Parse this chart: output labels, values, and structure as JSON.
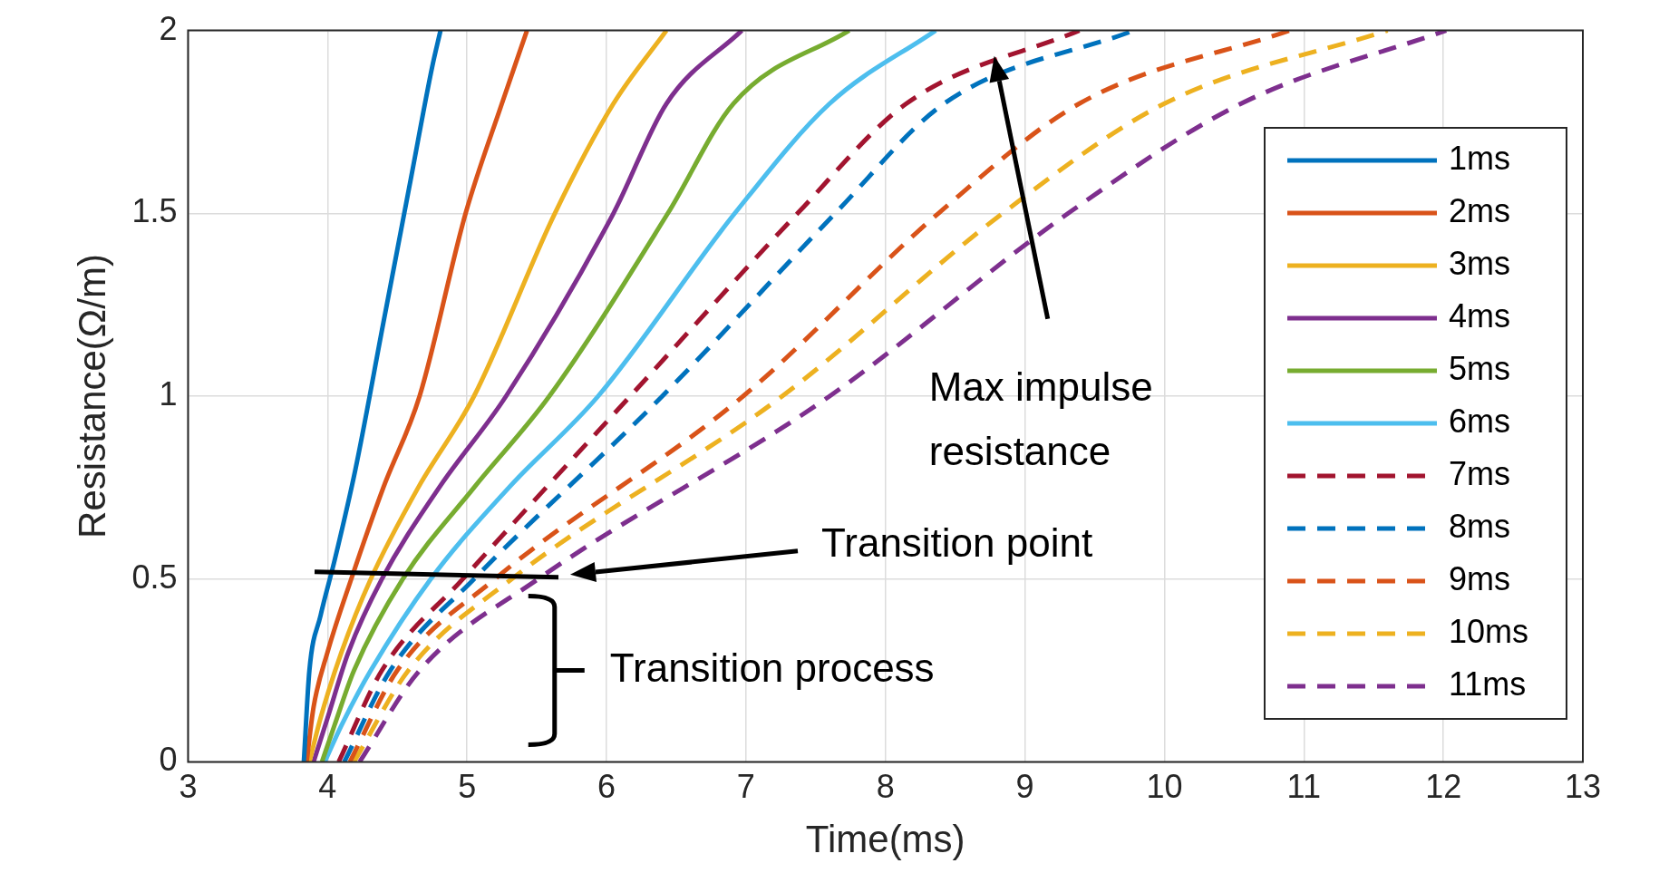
{
  "chart_data": {
    "type": "line",
    "xlabel": "Time(ms)",
    "ylabel": "Resistance(Ω/m)",
    "xlim": [
      3,
      13
    ],
    "xticks": [
      3,
      4,
      5,
      6,
      7,
      8,
      9,
      10,
      11,
      12,
      13
    ],
    "ylim": [
      0,
      2
    ],
    "yticks": [
      0,
      0.5,
      1,
      1.5,
      2
    ],
    "grid": true,
    "legend": "right",
    "marker": "none",
    "annotations": [
      "Max impulse resistance",
      "Transition point",
      "Transition process"
    ],
    "series": [
      {
        "name": "1ms",
        "color": "#0072bd",
        "line_style": "solid",
        "x": [
          3.83,
          3.87,
          3.95,
          4.05,
          4.2,
          4.4,
          4.6,
          4.75,
          4.81
        ],
        "values": [
          0,
          0.25,
          0.4,
          0.55,
          0.8,
          1.2,
          1.6,
          1.9,
          2
        ]
      },
      {
        "name": "2ms",
        "color": "#d95319",
        "line_style": "solid",
        "x": [
          3.85,
          3.9,
          4.0,
          4.17,
          4.4,
          4.66,
          4.99,
          5.25,
          5.43
        ],
        "values": [
          0,
          0.15,
          0.3,
          0.5,
          0.75,
          1,
          1.5,
          1.8,
          2
        ]
      },
      {
        "name": "3ms",
        "color": "#edb120",
        "line_style": "solid",
        "x": [
          3.87,
          3.95,
          4.1,
          4.31,
          4.65,
          5.05,
          5.63,
          6.05,
          6.43
        ],
        "values": [
          0,
          0.12,
          0.3,
          0.5,
          0.75,
          1,
          1.5,
          1.8,
          2
        ]
      },
      {
        "name": "4ms",
        "color": "#7e2f8e",
        "line_style": "solid",
        "x": [
          3.9,
          4.0,
          4.15,
          4.39,
          4.8,
          5.28,
          6.05,
          6.43,
          6.97
        ],
        "values": [
          0,
          0.12,
          0.3,
          0.5,
          0.75,
          1,
          1.5,
          1.8,
          2
        ]
      },
      {
        "name": "5ms",
        "color": "#77ac30",
        "line_style": "solid",
        "x": [
          3.96,
          4.05,
          4.19,
          4.54,
          5.05,
          5.59,
          6.44,
          6.91,
          7.74
        ],
        "values": [
          0,
          0.1,
          0.25,
          0.5,
          0.75,
          1,
          1.5,
          1.8,
          2
        ]
      },
      {
        "name": "6ms",
        "color": "#4dbeee",
        "line_style": "solid",
        "x": [
          3.98,
          4.1,
          4.31,
          4.74,
          5.3,
          5.94,
          6.92,
          7.6,
          8.36
        ],
        "values": [
          0,
          0.1,
          0.25,
          0.5,
          0.75,
          1,
          1.5,
          1.8,
          2
        ]
      },
      {
        "name": "7ms",
        "color": "#a2142f",
        "line_style": "dashed",
        "x": [
          4.08,
          4.39,
          4.97,
          6.17,
          7.37,
          8.15,
          9.39
        ],
        "values": [
          0,
          0.25,
          0.5,
          1,
          1.5,
          1.8,
          2
        ]
      },
      {
        "name": "8ms",
        "color": "#0072bd",
        "line_style": "dashed",
        "x": [
          4.12,
          4.45,
          5.05,
          6.4,
          7.64,
          8.42,
          9.78
        ],
        "values": [
          0,
          0.25,
          0.5,
          1,
          1.5,
          1.8,
          2
        ]
      },
      {
        "name": "9ms",
        "color": "#d95319",
        "line_style": "dashed",
        "x": [
          4.16,
          4.5,
          5.2,
          6.98,
          8.38,
          9.39,
          10.9
        ],
        "values": [
          0,
          0.25,
          0.5,
          1,
          1.5,
          1.8,
          2
        ]
      },
      {
        "name": "10ms",
        "color": "#edb120",
        "line_style": "dashed",
        "x": [
          4.19,
          4.58,
          5.32,
          7.26,
          8.84,
          10.0,
          11.6
        ],
        "values": [
          0,
          0.25,
          0.5,
          1,
          1.5,
          1.8,
          2
        ]
      },
      {
        "name": "11ms",
        "color": "#7e2f8e",
        "line_style": "dashed",
        "x": [
          4.23,
          4.66,
          5.51,
          7.6,
          9.31,
          10.55,
          12.02
        ],
        "values": [
          0,
          0.25,
          0.5,
          1,
          1.5,
          1.8,
          2
        ]
      }
    ]
  }
}
